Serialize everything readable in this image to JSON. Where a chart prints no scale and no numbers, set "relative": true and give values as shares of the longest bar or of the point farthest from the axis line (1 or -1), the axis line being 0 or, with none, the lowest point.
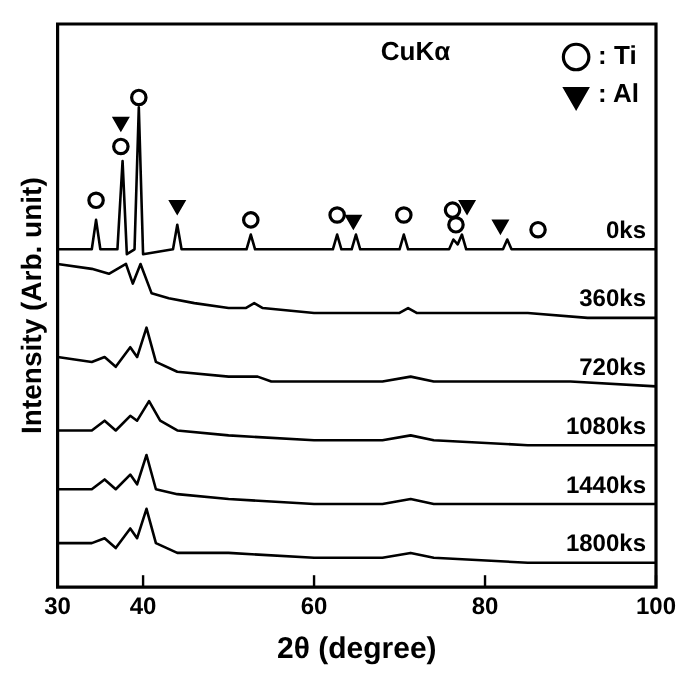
{
  "chart_data": {
    "type": "line",
    "xlabel": "2θ (degree)",
    "ylabel": "Intensity (Arb. unit)",
    "relative": true,
    "marker": "none",
    "line_style": "solid",
    "legend": "top right",
    "annotations": [
      "CuKα"
    ],
    "xlim": [
      30,
      100
    ],
    "xticks": [
      30,
      40,
      60,
      80,
      100
    ],
    "series": [
      {
        "name": "0ks",
        "color": "#000000",
        "x": [
          30,
          34.0,
          34.5,
          35.0,
          37.0,
          37.6,
          38.1,
          39.0,
          39.5,
          40.0,
          43.5,
          44.0,
          44.5,
          52.1,
          52.6,
          53.1,
          62.2,
          62.7,
          63.2,
          64.4,
          64.9,
          65.4,
          70.0,
          70.5,
          71.0,
          75.8,
          76.3,
          76.8,
          77.3,
          77.8,
          82.1,
          82.6,
          83.1,
          100
        ],
        "values": [
          0.69,
          0.69,
          0.75,
          0.69,
          0.69,
          0.87,
          0.68,
          0.69,
          0.98,
          0.68,
          0.69,
          0.74,
          0.69,
          0.69,
          0.72,
          0.69,
          0.69,
          0.72,
          0.69,
          0.69,
          0.72,
          0.69,
          0.69,
          0.72,
          0.69,
          0.69,
          0.71,
          0.7,
          0.72,
          0.69,
          0.69,
          0.71,
          0.69,
          0.69
        ]
      },
      {
        "name": "360ks",
        "color": "#000000",
        "x": [
          30,
          34,
          36,
          38.0,
          38.8,
          39.7,
          41,
          43,
          46,
          50,
          52,
          53,
          54,
          60,
          66,
          70,
          71,
          72,
          78,
          85,
          92,
          100
        ],
        "values": [
          0.66,
          0.65,
          0.64,
          0.66,
          0.62,
          0.66,
          0.6,
          0.59,
          0.58,
          0.57,
          0.57,
          0.58,
          0.57,
          0.56,
          0.56,
          0.56,
          0.57,
          0.56,
          0.56,
          0.56,
          0.55,
          0.55
        ]
      },
      {
        "name": "720ks",
        "color": "#000000",
        "x": [
          30,
          34,
          35.5,
          36.8,
          38.5,
          39.3,
          40.4,
          41.5,
          44,
          50,
          53.4,
          55,
          62,
          68,
          71.3,
          74,
          80,
          90,
          100
        ],
        "values": [
          0.47,
          0.46,
          0.47,
          0.45,
          0.49,
          0.47,
          0.53,
          0.46,
          0.44,
          0.43,
          0.43,
          0.42,
          0.42,
          0.42,
          0.43,
          0.42,
          0.42,
          0.42,
          0.41
        ]
      },
      {
        "name": "1080ks",
        "color": "#000000",
        "x": [
          30,
          34,
          35.5,
          36.8,
          38.5,
          39.3,
          40.7,
          42,
          44,
          50,
          60,
          68,
          71.3,
          74,
          85,
          100
        ],
        "values": [
          0.32,
          0.32,
          0.34,
          0.32,
          0.35,
          0.34,
          0.38,
          0.34,
          0.32,
          0.31,
          0.3,
          0.3,
          0.31,
          0.3,
          0.29,
          0.29
        ]
      },
      {
        "name": "1440ks",
        "color": "#000000",
        "x": [
          30,
          34,
          35.5,
          36.8,
          38.5,
          39.3,
          40.4,
          41.5,
          44,
          50,
          60,
          68,
          71.3,
          74,
          85,
          100
        ],
        "values": [
          0.2,
          0.2,
          0.22,
          0.2,
          0.23,
          0.21,
          0.27,
          0.2,
          0.19,
          0.18,
          0.17,
          0.17,
          0.18,
          0.17,
          0.17,
          0.17
        ]
      },
      {
        "name": "1800ks",
        "color": "#000000",
        "x": [
          30,
          34,
          35.5,
          36.8,
          38.5,
          39.3,
          40.4,
          41.5,
          44,
          50,
          60,
          68,
          71.3,
          74,
          85,
          100
        ],
        "values": [
          0.09,
          0.09,
          0.1,
          0.08,
          0.12,
          0.1,
          0.16,
          0.09,
          0.07,
          0.07,
          0.06,
          0.06,
          0.07,
          0.06,
          0.05,
          0.05
        ]
      },
      {
        "name": ": Ti",
        "type": "scatter",
        "marker": "circle",
        "color": "#000000",
        "x": [
          34.5,
          37.4,
          39.5,
          52.6,
          62.7,
          70.5,
          76.2,
          76.6,
          86.2
        ],
        "values": [
          0.79,
          0.9,
          1.0,
          0.75,
          0.76,
          0.76,
          0.77,
          0.74,
          0.73
        ]
      },
      {
        "name": ": Al",
        "type": "scatter",
        "marker": "triangle",
        "color": "#000000",
        "x": [
          37.4,
          44.0,
          64.6,
          77.9,
          81.8
        ],
        "values": [
          0.95,
          0.78,
          0.75,
          0.78,
          0.74
        ]
      }
    ]
  }
}
